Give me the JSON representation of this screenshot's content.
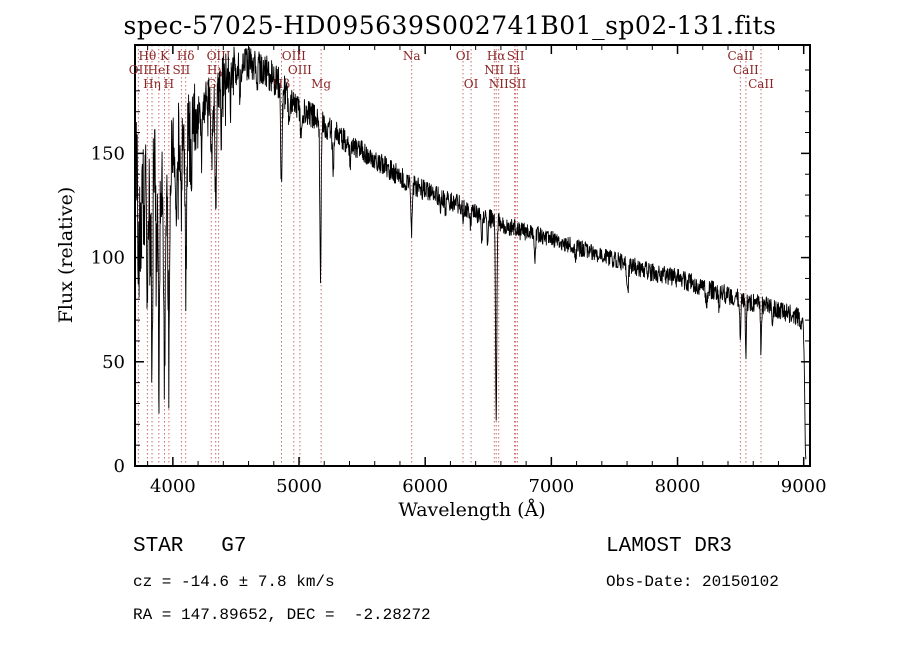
{
  "title": "spec-57025-HD095639S002741B01_sp02-131.fits",
  "annotations": {
    "class_label": "STAR   G7",
    "survey": "LAMOST DR3",
    "cz": "cz = -14.6 ± 7.8 km/s",
    "obs_date": "Obs-Date: 20150102",
    "coords": "RA = 147.89652, DEC =  -2.28272"
  },
  "chart_data": {
    "type": "line",
    "title": "spec-57025-HD095639S002741B01_sp02-131.fits",
    "xlabel": "Wavelength (Å)",
    "ylabel": "Flux (relative)",
    "xlim": [
      3700,
      9050
    ],
    "ylim": [
      0,
      202
    ],
    "xticks": [
      4000,
      5000,
      6000,
      7000,
      8000,
      9000
    ],
    "yticks": [
      0,
      50,
      100,
      150
    ],
    "grid": false,
    "legend": "none",
    "line_color": "#000000",
    "marker_color": "#c96b6b",
    "marker_label_color": "#8b2525",
    "sample_step": 2.5,
    "data_end": 9018,
    "spectral_lines": [
      {
        "label": "Hθ",
        "wavelength": 3798,
        "row": 0
      },
      {
        "label": "K",
        "wavelength": 3934,
        "row": 0
      },
      {
        "label": "Hδ",
        "wavelength": 4102,
        "row": 0
      },
      {
        "label": "OIII",
        "wavelength": 4363,
        "row": 0
      },
      {
        "label": "OIII",
        "wavelength": 4959,
        "row": 0
      },
      {
        "label": "Na",
        "wavelength": 5893,
        "row": 0
      },
      {
        "label": "OI",
        "wavelength": 6300,
        "row": 0
      },
      {
        "label": "Hα",
        "wavelength": 6563,
        "row": 0
      },
      {
        "label": "SII",
        "wavelength": 6717,
        "row": 0
      },
      {
        "label": "CaII",
        "wavelength": 8498,
        "row": 0
      },
      {
        "label": "OII",
        "wavelength": 3727,
        "row": 1
      },
      {
        "label": "HeI",
        "wavelength": 3889,
        "row": 1
      },
      {
        "label": "SII",
        "wavelength": 4068,
        "row": 1
      },
      {
        "label": "Hγ",
        "wavelength": 4340,
        "row": 1
      },
      {
        "label": "OIII",
        "wavelength": 5007,
        "row": 1
      },
      {
        "label": "NII",
        "wavelength": 6548,
        "row": 1
      },
      {
        "label": "Li",
        "wavelength": 6708,
        "row": 1
      },
      {
        "label": "CaII",
        "wavelength": 8542,
        "row": 1
      },
      {
        "label": "Hη",
        "wavelength": 3835,
        "row": 2
      },
      {
        "label": "H",
        "wavelength": 3969,
        "row": 2
      },
      {
        "label": "G",
        "wavelength": 4305,
        "row": 2
      },
      {
        "label": "Hβ",
        "wavelength": 4861,
        "row": 2
      },
      {
        "label": "Mg",
        "wavelength": 5175,
        "row": 2
      },
      {
        "label": "OI",
        "wavelength": 6364,
        "row": 2
      },
      {
        "label": "NII",
        "wavelength": 6583,
        "row": 2
      },
      {
        "label": "SII",
        "wavelength": 6731,
        "row": 2
      },
      {
        "label": "CaII",
        "wavelength": 8662,
        "row": 2
      }
    ],
    "continuum": [
      [
        3700,
        150
      ],
      [
        3730,
        152
      ],
      [
        3760,
        150
      ],
      [
        3800,
        148
      ],
      [
        3850,
        143
      ],
      [
        3900,
        139
      ],
      [
        3950,
        141
      ],
      [
        4000,
        152
      ],
      [
        4060,
        158
      ],
      [
        4120,
        162
      ],
      [
        4180,
        168
      ],
      [
        4250,
        172
      ],
      [
        4320,
        178
      ],
      [
        4400,
        186
      ],
      [
        4480,
        190
      ],
      [
        4560,
        193
      ],
      [
        4640,
        193
      ],
      [
        4720,
        190
      ],
      [
        4800,
        186
      ],
      [
        4860,
        182
      ],
      [
        4920,
        176
      ],
      [
        5000,
        171
      ],
      [
        5080,
        169
      ],
      [
        5160,
        166
      ],
      [
        5250,
        161
      ],
      [
        5350,
        157
      ],
      [
        5450,
        153
      ],
      [
        5550,
        149
      ],
      [
        5650,
        145
      ],
      [
        5750,
        141
      ],
      [
        5850,
        137
      ],
      [
        5950,
        133
      ],
      [
        6050,
        131
      ],
      [
        6150,
        128
      ],
      [
        6250,
        126
      ],
      [
        6350,
        123
      ],
      [
        6450,
        120
      ],
      [
        6550,
        118
      ],
      [
        6650,
        115
      ],
      [
        6750,
        113
      ],
      [
        6850,
        112
      ],
      [
        6950,
        110
      ],
      [
        7050,
        108
      ],
      [
        7150,
        106
      ],
      [
        7250,
        104
      ],
      [
        7350,
        102
      ],
      [
        7450,
        100
      ],
      [
        7550,
        98
      ],
      [
        7650,
        96
      ],
      [
        7750,
        94
      ],
      [
        7850,
        92
      ],
      [
        7950,
        91
      ],
      [
        8050,
        89
      ],
      [
        8150,
        87
      ],
      [
        8250,
        85
      ],
      [
        8350,
        83
      ],
      [
        8450,
        81
      ],
      [
        8550,
        79
      ],
      [
        8650,
        78
      ],
      [
        8750,
        76
      ],
      [
        8850,
        74
      ],
      [
        8950,
        72
      ],
      [
        8995,
        68
      ],
      [
        9005,
        46
      ],
      [
        9012,
        12
      ],
      [
        9018,
        6
      ]
    ],
    "absorption_lines": [
      [
        3727,
        70,
        6
      ],
      [
        3750,
        55,
        4
      ],
      [
        3770,
        48,
        4
      ],
      [
        3798,
        85,
        5
      ],
      [
        3820,
        50,
        4
      ],
      [
        3835,
        88,
        5
      ],
      [
        3869,
        58,
        4
      ],
      [
        3889,
        92,
        5
      ],
      [
        3934,
        102,
        6
      ],
      [
        3969,
        96,
        6
      ],
      [
        4026,
        32,
        4
      ],
      [
        4068,
        30,
        4
      ],
      [
        4102,
        62,
        6
      ],
      [
        4144,
        24,
        4
      ],
      [
        4227,
        28,
        4
      ],
      [
        4305,
        30,
        7
      ],
      [
        4340,
        52,
        6
      ],
      [
        4383,
        26,
        4
      ],
      [
        4455,
        16,
        4
      ],
      [
        4531,
        14,
        4
      ],
      [
        4668,
        14,
        4
      ],
      [
        4861,
        46,
        6
      ],
      [
        4920,
        16,
        4
      ],
      [
        5015,
        12,
        4
      ],
      [
        5170,
        72,
        5
      ],
      [
        5270,
        20,
        5
      ],
      [
        5406,
        10,
        4
      ],
      [
        5893,
        24,
        5
      ],
      [
        6122,
        9,
        4
      ],
      [
        6162,
        9,
        4
      ],
      [
        6300,
        7,
        4
      ],
      [
        6360,
        7,
        4
      ],
      [
        6450,
        12,
        4
      ],
      [
        6495,
        14,
        4
      ],
      [
        6563,
        95,
        5
      ],
      [
        6870,
        11,
        5
      ],
      [
        7190,
        8,
        5
      ],
      [
        7605,
        13,
        7
      ],
      [
        8230,
        9,
        5
      ],
      [
        8330,
        7,
        4
      ],
      [
        8498,
        20,
        4
      ],
      [
        8542,
        26,
        4
      ],
      [
        8662,
        24,
        4
      ],
      [
        8750,
        7,
        4
      ]
    ],
    "noise_regions": [
      [
        3700,
        3980,
        28
      ],
      [
        3980,
        4200,
        18
      ],
      [
        4200,
        4500,
        12
      ],
      [
        4500,
        4950,
        8
      ],
      [
        4950,
        5400,
        6
      ],
      [
        5400,
        6000,
        5
      ],
      [
        6000,
        6800,
        4.5
      ],
      [
        6800,
        7600,
        4
      ],
      [
        7600,
        9020,
        4.5
      ]
    ]
  }
}
